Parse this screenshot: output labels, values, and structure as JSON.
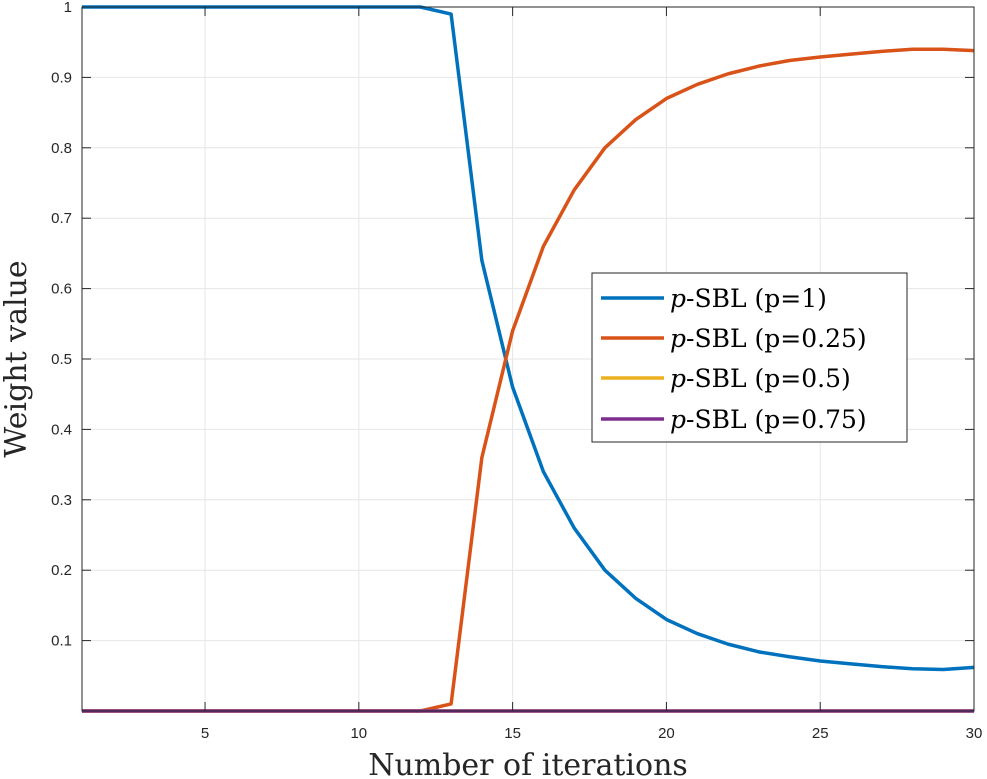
{
  "chart_data": {
    "type": "line",
    "title": "",
    "xlabel": "Number of iterations",
    "ylabel": "Weight value",
    "xlim": [
      1,
      30
    ],
    "ylim": [
      0,
      1
    ],
    "grid": true,
    "legend_position": "center-right",
    "xticks": [
      5,
      10,
      15,
      20,
      25,
      30
    ],
    "yticks": [
      0.1,
      0.2,
      0.3,
      0.4,
      0.5,
      0.6,
      0.7,
      0.8,
      0.9,
      1
    ],
    "ytick_labels": [
      "0.1",
      "0.2",
      "0.3",
      "0.4",
      "0.5",
      "0.6",
      "0.7",
      "0.8",
      "0.9",
      "1"
    ],
    "x": [
      1,
      2,
      3,
      4,
      5,
      6,
      7,
      8,
      9,
      10,
      11,
      12,
      13,
      14,
      15,
      16,
      17,
      18,
      19,
      20,
      21,
      22,
      23,
      24,
      25,
      26,
      27,
      28,
      29,
      30
    ],
    "series": [
      {
        "name": "p-SBL (p=1)",
        "name_italic": "p",
        "name_rest": "-SBL (p=1)",
        "color": "#0072BD",
        "values": [
          1,
          1,
          1,
          1,
          1,
          1,
          1,
          1,
          1,
          1,
          1,
          1,
          0.99,
          0.64,
          0.46,
          0.34,
          0.26,
          0.2,
          0.16,
          0.13,
          0.11,
          0.095,
          0.084,
          0.077,
          0.071,
          0.067,
          0.063,
          0.06,
          0.059,
          0.062
        ]
      },
      {
        "name": "p-SBL (p=0.25)",
        "name_italic": "p",
        "name_rest": "-SBL (p=0.25)",
        "color": "#D95319",
        "values": [
          0,
          0,
          0,
          0,
          0,
          0,
          0,
          0,
          0,
          0,
          0,
          0,
          0.01,
          0.36,
          0.54,
          0.66,
          0.74,
          0.8,
          0.84,
          0.87,
          0.89,
          0.905,
          0.916,
          0.924,
          0.929,
          0.933,
          0.937,
          0.94,
          0.94,
          0.938
        ]
      },
      {
        "name": "p-SBL (p=0.5)",
        "name_italic": "p",
        "name_rest": "-SBL (p=0.5)",
        "color": "#EDB120",
        "values": [
          0,
          0,
          0,
          0,
          0,
          0,
          0,
          0,
          0,
          0,
          0,
          0,
          0,
          0,
          0,
          0,
          0,
          0,
          0,
          0,
          0,
          0,
          0,
          0,
          0,
          0,
          0,
          0,
          0,
          0
        ]
      },
      {
        "name": "p-SBL (p=0.75)",
        "name_italic": "p",
        "name_rest": "-SBL (p=0.75)",
        "color": "#7E2F8E",
        "values": [
          0,
          0,
          0,
          0,
          0,
          0,
          0,
          0,
          0,
          0,
          0,
          0,
          0,
          0,
          0,
          0,
          0,
          0,
          0,
          0,
          0,
          0,
          0,
          0,
          0,
          0,
          0,
          0,
          0,
          0
        ]
      }
    ]
  }
}
